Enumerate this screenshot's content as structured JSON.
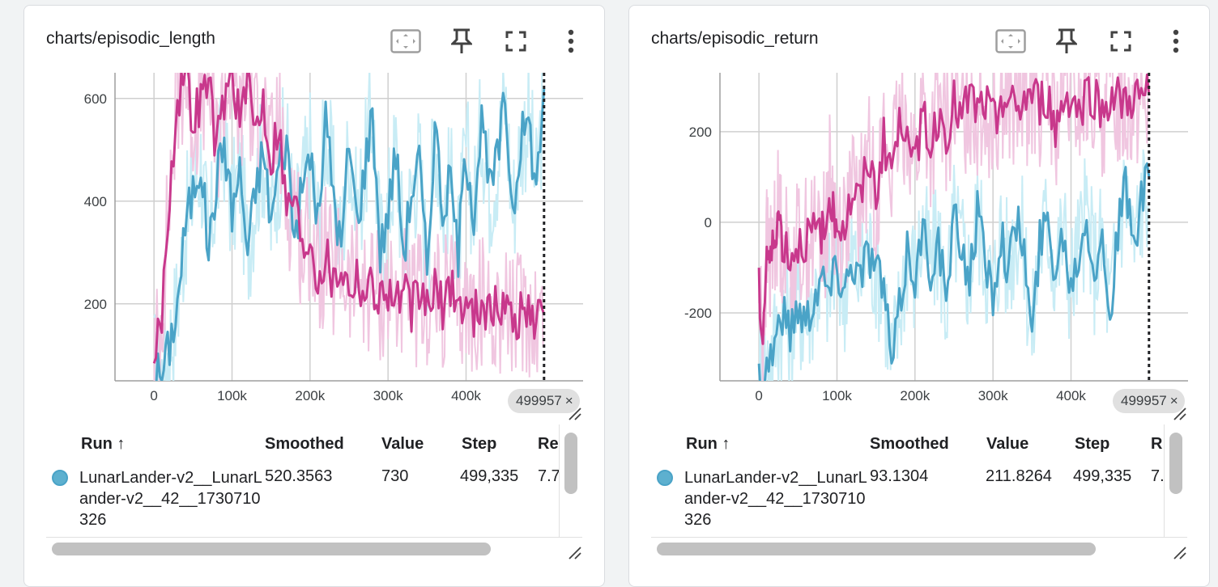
{
  "cards": [
    {
      "title": "charts/episodic_length",
      "icons": [
        "fit-domain-icon",
        "pin-icon",
        "fullscreen-icon",
        "more-vert-icon"
      ],
      "step_chip": "499957",
      "chip_close": "×",
      "table": {
        "headers": {
          "run": "Run ↑",
          "smoothed": "Smoothed",
          "value": "Value",
          "step": "Step",
          "relative": "Re"
        },
        "row": {
          "run": "LunarLander-v2__LunarLander-v2__42__1730710326",
          "smoothed": "520.3563",
          "value": "730",
          "step": "499,335",
          "relative": "7.7"
        }
      },
      "chart_data": {
        "type": "line",
        "title": "charts/episodic_length",
        "xlabel": "",
        "ylabel": "",
        "x_ticks": [
          "0",
          "100k",
          "200k",
          "300k",
          "400k"
        ],
        "y_ticks": [
          "200",
          "400",
          "600"
        ],
        "xlim": [
          -50000,
          550000
        ],
        "ylim": [
          50,
          650
        ],
        "grid": true,
        "step_marker": 499957,
        "series": [
          {
            "color": "#4aa3c7",
            "raw_color": "#c8ecf5",
            "x": [
              0,
              10000,
              20000,
              30000,
              40000,
              50000,
              60000,
              70000,
              80000,
              90000,
              100000,
              110000,
              120000,
              130000,
              140000,
              150000,
              160000,
              170000,
              180000,
              190000,
              200000,
              210000,
              220000,
              230000,
              240000,
              250000,
              260000,
              270000,
              280000,
              290000,
              300000,
              310000,
              320000,
              330000,
              340000,
              350000,
              360000,
              370000,
              380000,
              390000,
              400000,
              410000,
              420000,
              430000,
              440000,
              450000,
              460000,
              470000,
              480000,
              490000,
              500000
            ],
            "y": [
              70,
              60,
              120,
              200,
              350,
              420,
              480,
              300,
              440,
              520,
              380,
              460,
              300,
              420,
              500,
              360,
              470,
              520,
              330,
              420,
              500,
              350,
              560,
              420,
              300,
              520,
              360,
              460,
              580,
              300,
              380,
              500,
              300,
              420,
              480,
              260,
              560,
              380,
              440,
              300,
              500,
              380,
              560,
              420,
              480,
              600,
              380,
              520,
              560,
              420,
              620
            ]
          },
          {
            "color": "#c8388c",
            "raw_color": "#f0c6e0",
            "x": [
              0,
              10000,
              20000,
              30000,
              40000,
              50000,
              60000,
              70000,
              80000,
              90000,
              100000,
              110000,
              120000,
              130000,
              140000,
              150000,
              160000,
              170000,
              180000,
              190000,
              200000,
              210000,
              220000,
              230000,
              240000,
              250000,
              260000,
              270000,
              280000,
              290000,
              300000,
              310000,
              320000,
              330000,
              340000,
              350000,
              360000,
              370000,
              380000,
              390000,
              400000,
              410000,
              420000,
              430000,
              440000,
              450000,
              460000,
              470000,
              480000,
              490000,
              500000
            ],
            "y": [
              90,
              180,
              420,
              600,
              650,
              560,
              600,
              640,
              500,
              600,
              650,
              560,
              620,
              540,
              600,
              480,
              560,
              380,
              420,
              300,
              340,
              250,
              300,
              240,
              280,
              230,
              260,
              220,
              240,
              210,
              230,
              200,
              220,
              190,
              210,
              200,
              220,
              190,
              240,
              200,
              190,
              180,
              210,
              180,
              190,
              200,
              170,
              180,
              190,
              170,
              180
            ]
          }
        ]
      }
    },
    {
      "title": "charts/episodic_return",
      "icons": [
        "fit-domain-icon",
        "pin-icon",
        "fullscreen-icon",
        "more-vert-icon"
      ],
      "step_chip": "499957",
      "chip_close": "×",
      "table": {
        "headers": {
          "run": "Run ↑",
          "smoothed": "Smoothed",
          "value": "Value",
          "step": "Step",
          "relative": "R"
        },
        "row": {
          "run": "LunarLander-v2__LunarLander-v2__42__1730710326",
          "smoothed": "93.1304",
          "value": "211.8264",
          "step": "499,335",
          "relative": "7."
        }
      },
      "chart_data": {
        "type": "line",
        "title": "charts/episodic_return",
        "xlabel": "",
        "ylabel": "",
        "x_ticks": [
          "0",
          "100k",
          "200k",
          "300k",
          "400k"
        ],
        "y_ticks": [
          "-200",
          "0",
          "200"
        ],
        "xlim": [
          -50000,
          550000
        ],
        "ylim": [
          -350,
          330
        ],
        "grid": true,
        "step_marker": 499957,
        "series": [
          {
            "color": "#4aa3c7",
            "raw_color": "#c8ecf5",
            "x": [
              0,
              10000,
              20000,
              30000,
              40000,
              50000,
              60000,
              70000,
              80000,
              90000,
              100000,
              110000,
              120000,
              130000,
              140000,
              150000,
              160000,
              170000,
              180000,
              190000,
              200000,
              210000,
              220000,
              230000,
              240000,
              250000,
              260000,
              270000,
              280000,
              290000,
              300000,
              310000,
              320000,
              330000,
              340000,
              350000,
              360000,
              370000,
              380000,
              390000,
              400000,
              410000,
              420000,
              430000,
              440000,
              450000,
              460000,
              470000,
              480000,
              490000,
              500000
            ],
            "y": [
              -340,
              -320,
              -260,
              -200,
              -240,
              -180,
              -220,
              -160,
              -120,
              -150,
              -100,
              -140,
              -80,
              -120,
              -60,
              -100,
              -140,
              -320,
              -200,
              -60,
              -120,
              -20,
              -100,
              -40,
              -180,
              0,
              -60,
              -120,
              20,
              -80,
              -160,
              -20,
              -100,
              0,
              -60,
              -260,
              -40,
              0,
              -100,
              -20,
              -140,
              -60,
              20,
              -100,
              -40,
              -200,
              -20,
              80,
              -60,
              40,
              100
            ]
          },
          {
            "color": "#c8388c",
            "raw_color": "#f0c6e0",
            "x": [
              0,
              5000,
              10000,
              15000,
              20000,
              25000,
              30000,
              40000,
              50000,
              60000,
              70000,
              80000,
              85000,
              90000,
              95000,
              100000,
              110000,
              120000,
              130000,
              140000,
              150000,
              160000,
              170000,
              180000,
              190000,
              200000,
              210000,
              220000,
              230000,
              240000,
              250000,
              260000,
              270000,
              280000,
              290000,
              300000,
              310000,
              320000,
              330000,
              340000,
              350000,
              360000,
              370000,
              380000,
              390000,
              400000,
              410000,
              420000,
              430000,
              440000,
              450000,
              460000,
              470000,
              480000,
              490000,
              500000
            ],
            "y": [
              -150,
              -260,
              -60,
              -100,
              -20,
              20,
              -40,
              -80,
              -50,
              -40,
              -30,
              -20,
              -40,
              100,
              20,
              0,
              -10,
              60,
              40,
              140,
              60,
              180,
              120,
              200,
              240,
              120,
              260,
              160,
              240,
              200,
              260,
              220,
              280,
              240,
              260,
              220,
              280,
              260,
              240,
              270,
              280,
              260,
              280,
              200,
              270,
              280,
              240,
              290,
              280,
              240,
              280,
              270,
              260,
              280,
              270,
              280
            ]
          }
        ]
      }
    }
  ]
}
